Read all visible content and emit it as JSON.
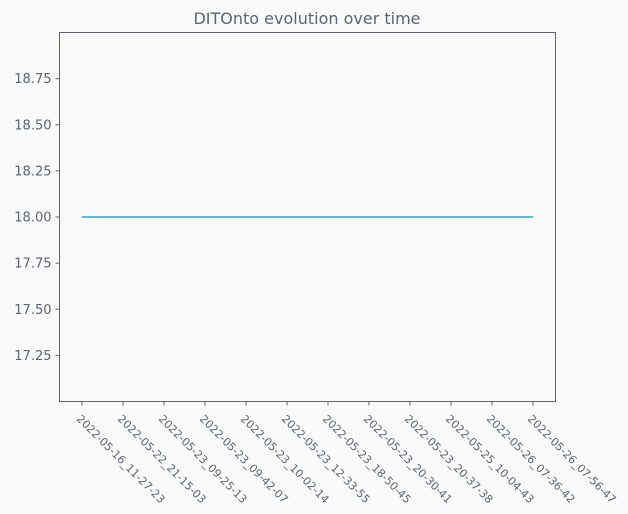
{
  "chart_data": {
    "type": "line",
    "title": "DITOnto evolution over time",
    "xlabel": "",
    "ylabel": "",
    "categories": [
      "2022-05-16_11-27-23",
      "2022-05-22_21-15-03",
      "2022-05-23_09-25-13",
      "2022-05-23_09-42-07",
      "2022-05-23_10-02-14",
      "2022-05-23_12-33-55",
      "2022-05-23_18-50-45",
      "2022-05-23_20-30-41",
      "2022-05-23_20-37-38",
      "2022-05-25_10-04-43",
      "2022-05-26_07-36-42",
      "2022-05-26_07-56-47"
    ],
    "series": [
      {
        "values": [
          18,
          18,
          18,
          18,
          18,
          18,
          18,
          18,
          18,
          18,
          18,
          18
        ],
        "color": "#2ca2cf"
      }
    ],
    "ylim": [
      17.0,
      19.0
    ],
    "yticks": [
      17.25,
      17.5,
      17.75,
      18.0,
      18.25,
      18.5,
      18.75
    ],
    "ytick_labels": [
      "17.25",
      "17.50",
      "17.75",
      "18.00",
      "18.25",
      "18.50",
      "18.75"
    ],
    "grid": false,
    "legend": "none"
  }
}
